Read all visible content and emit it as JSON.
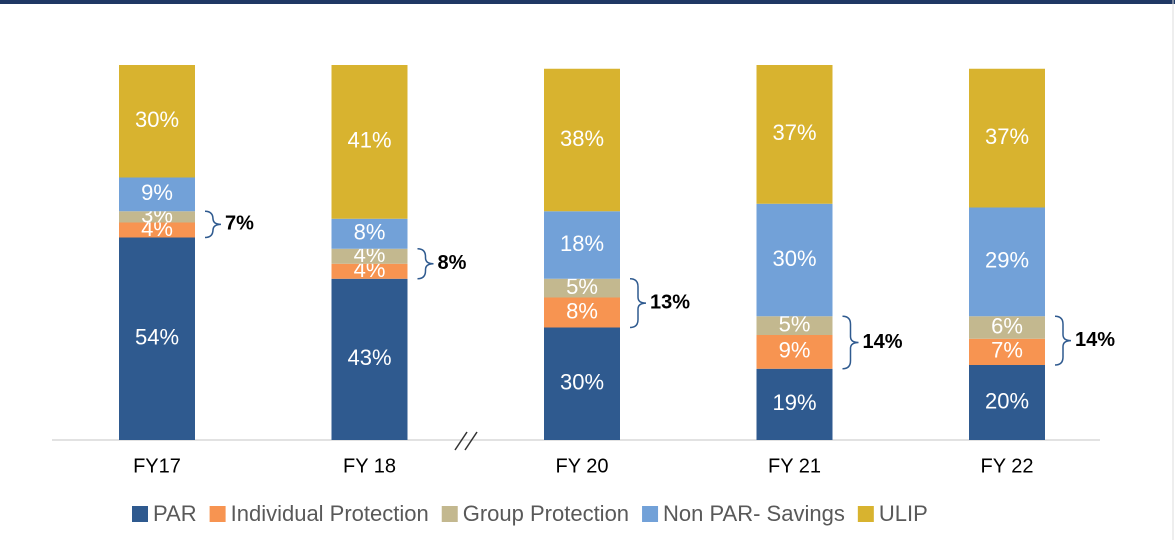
{
  "chart_data": {
    "type": "stacked_bar",
    "categories": [
      "FY17",
      "FY 18",
      "FY 20",
      "FY 21",
      "FY 22"
    ],
    "series": [
      {
        "name": "PAR",
        "color": "#2f5a8f",
        "values": [
          54,
          43,
          30,
          19,
          20
        ],
        "value_labels": [
          "54%",
          "43%",
          "30%",
          "19%",
          "20%"
        ]
      },
      {
        "name": "Individual Protection",
        "color": "#f79451",
        "values": [
          4,
          4,
          8,
          9,
          7
        ],
        "value_labels": [
          "4%",
          "4%",
          "8%",
          "9%",
          "7%"
        ]
      },
      {
        "name": "Group Protection",
        "color": "#c3b88f",
        "values": [
          3,
          4,
          5,
          5,
          6
        ],
        "value_labels": [
          "3%",
          "4%",
          "5%",
          "5%",
          "6%"
        ]
      },
      {
        "name": "Non PAR- Savings",
        "color": "#72a1d8",
        "values": [
          9,
          8,
          18,
          30,
          29
        ],
        "value_labels": [
          "9%",
          "8%",
          "18%",
          "30%",
          "29%"
        ]
      },
      {
        "name": "ULIP",
        "color": "#d8b32f",
        "values": [
          30,
          41,
          38,
          37,
          37
        ],
        "value_labels": [
          "30%",
          "41%",
          "38%",
          "37%",
          "37%"
        ]
      }
    ],
    "annotations": [
      "7%",
      "8%",
      "13%",
      "14%",
      "14%"
    ],
    "ylim": [
      0,
      100
    ],
    "legend": "bottom"
  }
}
